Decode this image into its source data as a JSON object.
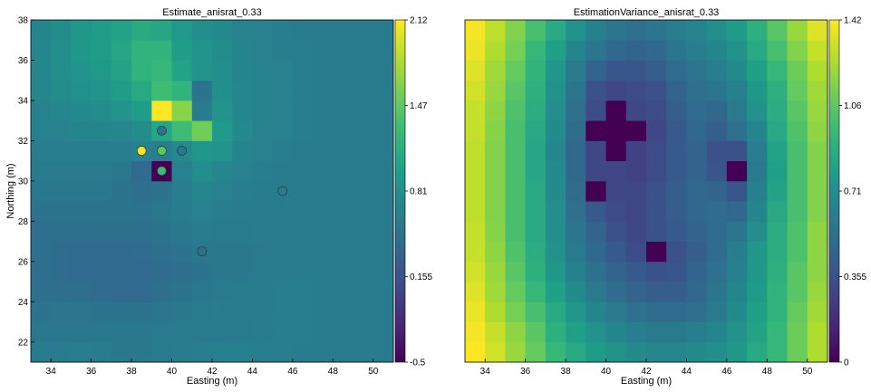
{
  "chart_data": [
    {
      "type": "heatmap",
      "title": "Estimate_anisrat_0.33",
      "xlabel": "Easting (m)",
      "ylabel": "Northing (m)",
      "xlim": [
        33,
        51
      ],
      "ylim": [
        21,
        38
      ],
      "xticks": [
        34,
        36,
        38,
        40,
        42,
        44,
        46,
        48,
        50
      ],
      "yticks": [
        22,
        24,
        26,
        28,
        30,
        32,
        34,
        36,
        38
      ],
      "grid": false,
      "colormap": "viridis",
      "colorbar": {
        "min": -0.5,
        "max": 2.12,
        "ticks": [
          "2.12",
          "1.47",
          "0.81",
          "0.155",
          "-0.5"
        ]
      },
      "cell_size": 1,
      "grid_origin": [
        33,
        21
      ],
      "values": [
        [
          0.6,
          0.6,
          0.62,
          0.6,
          0.55,
          0.55,
          0.58,
          0.6,
          0.62,
          0.64,
          0.64,
          0.62,
          0.62,
          0.6,
          0.6,
          0.6,
          0.6,
          0.6
        ],
        [
          0.55,
          0.55,
          0.55,
          0.55,
          0.55,
          0.55,
          0.58,
          0.58,
          0.58,
          0.58,
          0.58,
          0.6,
          0.62,
          0.62,
          0.6,
          0.6,
          0.6,
          0.6
        ],
        [
          0.5,
          0.52,
          0.52,
          0.5,
          0.5,
          0.5,
          0.52,
          0.55,
          0.58,
          0.6,
          0.6,
          0.6,
          0.62,
          0.62,
          0.6,
          0.6,
          0.6,
          0.6
        ],
        [
          0.45,
          0.45,
          0.45,
          0.42,
          0.4,
          0.4,
          0.45,
          0.5,
          0.55,
          0.58,
          0.6,
          0.6,
          0.62,
          0.62,
          0.6,
          0.6,
          0.6,
          0.6
        ],
        [
          0.45,
          0.42,
          0.4,
          0.4,
          0.4,
          0.4,
          0.42,
          0.45,
          0.5,
          0.55,
          0.55,
          0.58,
          0.6,
          0.6,
          0.6,
          0.6,
          0.6,
          0.6
        ],
        [
          0.45,
          0.42,
          0.4,
          0.4,
          0.4,
          0.42,
          0.45,
          0.48,
          0.55,
          0.55,
          0.55,
          0.58,
          0.6,
          0.6,
          0.6,
          0.6,
          0.6,
          0.6
        ],
        [
          0.45,
          0.45,
          0.45,
          0.45,
          0.45,
          0.45,
          0.5,
          0.55,
          0.6,
          0.58,
          0.58,
          0.6,
          0.6,
          0.6,
          0.6,
          0.6,
          0.6,
          0.6
        ],
        [
          0.5,
          0.5,
          0.5,
          0.5,
          0.5,
          0.5,
          0.55,
          0.6,
          0.66,
          0.62,
          0.6,
          0.6,
          0.6,
          0.6,
          0.6,
          0.6,
          0.6,
          0.6
        ],
        [
          0.55,
          0.55,
          0.55,
          0.55,
          0.5,
          0.45,
          0.5,
          0.62,
          0.72,
          0.65,
          0.62,
          0.6,
          0.6,
          0.6,
          0.6,
          0.6,
          0.6,
          0.6
        ],
        [
          0.58,
          0.58,
          0.58,
          0.58,
          0.55,
          0.4,
          -0.5,
          0.65,
          0.8,
          0.72,
          0.65,
          0.62,
          0.6,
          0.6,
          0.6,
          0.6,
          0.6,
          0.6
        ],
        [
          0.62,
          0.62,
          0.62,
          0.62,
          0.62,
          0.66,
          0.62,
          0.75,
          0.88,
          0.85,
          0.7,
          0.65,
          0.62,
          0.6,
          0.6,
          0.6,
          0.6,
          0.6
        ],
        [
          0.65,
          0.68,
          0.7,
          0.7,
          0.72,
          0.78,
          1.05,
          1.3,
          1.55,
          0.92,
          0.75,
          0.68,
          0.65,
          0.62,
          0.6,
          0.6,
          0.6,
          0.6
        ],
        [
          0.68,
          0.72,
          0.75,
          0.78,
          0.85,
          0.95,
          2.12,
          1.65,
          0.6,
          0.85,
          0.72,
          0.68,
          0.65,
          0.62,
          0.6,
          0.6,
          0.6,
          0.6
        ],
        [
          0.72,
          0.78,
          0.82,
          0.85,
          0.95,
          1.08,
          1.3,
          1.2,
          0.5,
          0.8,
          0.72,
          0.68,
          0.65,
          0.62,
          0.6,
          0.6,
          0.6,
          0.6
        ],
        [
          0.72,
          0.8,
          0.85,
          0.9,
          1.0,
          1.2,
          1.25,
          1.0,
          0.85,
          0.8,
          0.7,
          0.68,
          0.65,
          0.62,
          0.6,
          0.6,
          0.6,
          0.6
        ],
        [
          0.72,
          0.8,
          0.88,
          0.95,
          1.05,
          1.2,
          1.2,
          0.95,
          0.85,
          0.78,
          0.7,
          0.65,
          0.62,
          0.62,
          0.6,
          0.6,
          0.6,
          0.6
        ],
        [
          0.7,
          0.78,
          0.88,
          0.95,
          1.0,
          1.1,
          1.05,
          0.9,
          0.8,
          0.75,
          0.68,
          0.65,
          0.62,
          0.6,
          0.6,
          0.6,
          0.6,
          0.6
        ]
      ],
      "markers": [
        {
          "x": 38.5,
          "y": 31.5,
          "value": 2.1
        },
        {
          "x": 39.5,
          "y": 31.5,
          "value": 1.45
        },
        {
          "x": 39.5,
          "y": 32.5,
          "value": 0.5
        },
        {
          "x": 39.5,
          "y": 30.5,
          "value": 1.3
        },
        {
          "x": 40.5,
          "y": 31.5,
          "value": 0.55
        },
        {
          "x": 45.5,
          "y": 29.5,
          "value": 0.6
        },
        {
          "x": 41.5,
          "y": 26.5,
          "value": 0.5
        }
      ]
    },
    {
      "type": "heatmap",
      "title": "EstimationVariance_anisrat_0.33",
      "xlabel": "Easting (m)",
      "ylabel": "",
      "xlim": [
        33,
        51
      ],
      "ylim": [
        21,
        38
      ],
      "xticks": [
        34,
        36,
        38,
        40,
        42,
        44,
        46,
        48,
        50
      ],
      "yticks": [],
      "grid": false,
      "colormap": "viridis",
      "colorbar": {
        "min": 0,
        "max": 1.42,
        "ticks": [
          "1.42",
          "1.06",
          "0.71",
          "0.355",
          "0"
        ]
      },
      "cell_size": 1,
      "grid_origin": [
        33,
        21
      ],
      "values": [
        [
          1.42,
          1.32,
          1.2,
          1.08,
          0.95,
          0.85,
          0.78,
          0.72,
          0.68,
          0.66,
          0.66,
          0.68,
          0.7,
          0.75,
          0.85,
          0.95,
          1.1,
          1.25
        ],
        [
          1.4,
          1.3,
          1.18,
          1.05,
          0.9,
          0.8,
          0.72,
          0.65,
          0.6,
          0.58,
          0.58,
          0.6,
          0.65,
          0.72,
          0.82,
          0.95,
          1.1,
          1.25
        ],
        [
          1.38,
          1.25,
          1.12,
          1.0,
          0.85,
          0.75,
          0.65,
          0.58,
          0.52,
          0.5,
          0.5,
          0.52,
          0.58,
          0.68,
          0.8,
          0.92,
          1.08,
          1.22
        ],
        [
          1.35,
          1.22,
          1.08,
          0.95,
          0.8,
          0.68,
          0.58,
          0.5,
          0.45,
          0.42,
          0.42,
          0.48,
          0.55,
          0.65,
          0.78,
          0.92,
          1.05,
          1.2
        ],
        [
          1.32,
          1.2,
          1.05,
          0.9,
          0.75,
          0.62,
          0.52,
          0.45,
          0.4,
          0.36,
          0.38,
          0.45,
          0.52,
          0.62,
          0.75,
          0.9,
          1.05,
          1.18
        ],
        [
          1.3,
          1.18,
          1.02,
          0.88,
          0.72,
          0.58,
          0.48,
          0.4,
          0.32,
          0.0,
          0.35,
          0.42,
          0.5,
          0.6,
          0.75,
          0.88,
          1.02,
          1.18
        ],
        [
          1.3,
          1.16,
          1.0,
          0.85,
          0.7,
          0.55,
          0.45,
          0.36,
          0.3,
          0.36,
          0.4,
          0.45,
          0.5,
          0.55,
          0.7,
          0.88,
          1.02,
          1.18
        ],
        [
          1.28,
          1.15,
          1.0,
          0.85,
          0.7,
          0.52,
          0.4,
          0.32,
          0.3,
          0.36,
          0.42,
          0.48,
          0.5,
          0.48,
          0.65,
          0.85,
          1.0,
          1.15
        ],
        [
          1.28,
          1.15,
          1.0,
          0.85,
          0.68,
          0.5,
          0.0,
          0.3,
          0.3,
          0.35,
          0.42,
          0.48,
          0.45,
          0.38,
          0.62,
          0.82,
          1.0,
          1.15
        ],
        [
          1.28,
          1.15,
          1.0,
          0.84,
          0.68,
          0.48,
          0.3,
          0.3,
          0.28,
          0.32,
          0.4,
          0.45,
          0.38,
          0.0,
          0.58,
          0.8,
          1.0,
          1.15
        ],
        [
          1.28,
          1.15,
          1.0,
          0.84,
          0.66,
          0.48,
          0.3,
          0.0,
          0.28,
          0.32,
          0.4,
          0.45,
          0.35,
          0.36,
          0.6,
          0.82,
          1.0,
          1.15
        ],
        [
          1.3,
          1.16,
          1.0,
          0.85,
          0.68,
          0.5,
          0.0,
          0.0,
          0.0,
          0.3,
          0.4,
          0.48,
          0.42,
          0.52,
          0.65,
          0.85,
          1.02,
          1.18
        ],
        [
          1.3,
          1.18,
          1.02,
          0.88,
          0.7,
          0.52,
          0.32,
          0.0,
          0.3,
          0.32,
          0.42,
          0.5,
          0.48,
          0.58,
          0.72,
          0.88,
          1.05,
          1.2
        ],
        [
          1.32,
          1.2,
          1.05,
          0.9,
          0.72,
          0.55,
          0.35,
          0.3,
          0.32,
          0.35,
          0.45,
          0.52,
          0.55,
          0.62,
          0.75,
          0.9,
          1.08,
          1.22
        ],
        [
          1.35,
          1.22,
          1.08,
          0.92,
          0.75,
          0.58,
          0.45,
          0.38,
          0.38,
          0.42,
          0.5,
          0.55,
          0.6,
          0.68,
          0.8,
          0.95,
          1.1,
          1.25
        ],
        [
          1.38,
          1.25,
          1.12,
          0.95,
          0.8,
          0.65,
          0.55,
          0.48,
          0.45,
          0.48,
          0.55,
          0.6,
          0.65,
          0.72,
          0.85,
          1.0,
          1.15,
          1.3
        ],
        [
          1.4,
          1.28,
          1.15,
          1.0,
          0.85,
          0.72,
          0.62,
          0.56,
          0.52,
          0.55,
          0.6,
          0.65,
          0.7,
          0.78,
          0.9,
          1.05,
          1.2,
          1.35
        ]
      ]
    }
  ]
}
